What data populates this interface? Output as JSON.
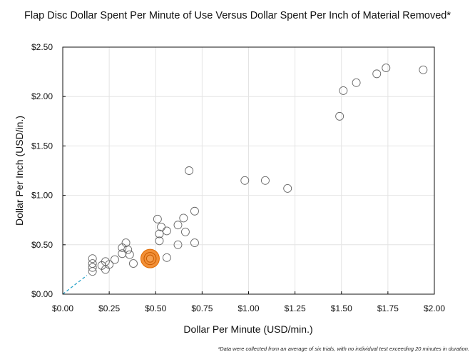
{
  "chart_data": {
    "type": "scatter",
    "title": "Flap Disc Dollar Spent Per Minute of Use Versus Dollar Spent Per Inch of Material Removed*",
    "xlabel": "Dollar Per Minute (USD/min.)",
    "ylabel": "Dollar Per Inch (USD/in.)",
    "xlim": [
      0,
      2.0
    ],
    "ylim": [
      0,
      2.5
    ],
    "xticks": [
      {
        "value": 0.0,
        "label": "$0.00"
      },
      {
        "value": 0.25,
        "label": "$0.25"
      },
      {
        "value": 0.5,
        "label": "$0.50"
      },
      {
        "value": 0.75,
        "label": "$0.75"
      },
      {
        "value": 1.0,
        "label": "$1.00"
      },
      {
        "value": 1.25,
        "label": "$1.25"
      },
      {
        "value": 1.5,
        "label": "$1.50"
      },
      {
        "value": 1.75,
        "label": "$1.75"
      },
      {
        "value": 2.0,
        "label": "$2.00"
      }
    ],
    "yticks": [
      {
        "value": 0.0,
        "label": "$0.00"
      },
      {
        "value": 0.5,
        "label": "$0.50"
      },
      {
        "value": 1.0,
        "label": "$1.00"
      },
      {
        "value": 1.5,
        "label": "$1.50"
      },
      {
        "value": 2.0,
        "label": "$2.00"
      },
      {
        "value": 2.5,
        "label": "$2.50"
      }
    ],
    "grid": true,
    "series": [
      {
        "style": "open-circle",
        "color": "#666666",
        "points": [
          {
            "x": 0.16,
            "y": 0.36
          },
          {
            "x": 0.16,
            "y": 0.31
          },
          {
            "x": 0.16,
            "y": 0.27
          },
          {
            "x": 0.16,
            "y": 0.23
          },
          {
            "x": 0.21,
            "y": 0.29
          },
          {
            "x": 0.23,
            "y": 0.33
          },
          {
            "x": 0.23,
            "y": 0.25
          },
          {
            "x": 0.25,
            "y": 0.3
          },
          {
            "x": 0.28,
            "y": 0.35
          },
          {
            "x": 0.32,
            "y": 0.47
          },
          {
            "x": 0.32,
            "y": 0.41
          },
          {
            "x": 0.34,
            "y": 0.52
          },
          {
            "x": 0.35,
            "y": 0.45
          },
          {
            "x": 0.36,
            "y": 0.4
          },
          {
            "x": 0.38,
            "y": 0.31
          },
          {
            "x": 0.51,
            "y": 0.76
          },
          {
            "x": 0.52,
            "y": 0.61
          },
          {
            "x": 0.52,
            "y": 0.54
          },
          {
            "x": 0.53,
            "y": 0.68
          },
          {
            "x": 0.56,
            "y": 0.64
          },
          {
            "x": 0.56,
            "y": 0.37
          },
          {
            "x": 0.62,
            "y": 0.7
          },
          {
            "x": 0.62,
            "y": 0.5
          },
          {
            "x": 0.65,
            "y": 0.77
          },
          {
            "x": 0.66,
            "y": 0.63
          },
          {
            "x": 0.68,
            "y": 1.25
          },
          {
            "x": 0.71,
            "y": 0.84
          },
          {
            "x": 0.71,
            "y": 0.52
          },
          {
            "x": 0.98,
            "y": 1.15
          },
          {
            "x": 1.09,
            "y": 1.15
          },
          {
            "x": 1.21,
            "y": 1.07
          },
          {
            "x": 1.49,
            "y": 1.8
          },
          {
            "x": 1.51,
            "y": 2.06
          },
          {
            "x": 1.58,
            "y": 2.14
          },
          {
            "x": 1.69,
            "y": 2.23
          },
          {
            "x": 1.74,
            "y": 2.29
          },
          {
            "x": 1.94,
            "y": 2.27
          }
        ]
      },
      {
        "style": "highlight",
        "color": "#f07d14",
        "points": [
          {
            "x": 0.47,
            "y": 0.36
          }
        ]
      }
    ],
    "trend_line": {
      "color": "#29a3c9",
      "style": "dashed",
      "from": {
        "x": 0.0,
        "y": 0.0
      },
      "to": {
        "x": 0.13,
        "y": 0.19
      }
    },
    "footnote": "*Data were collected from an average of six trials, with no individual test exceeding 20 minutes in duration."
  }
}
